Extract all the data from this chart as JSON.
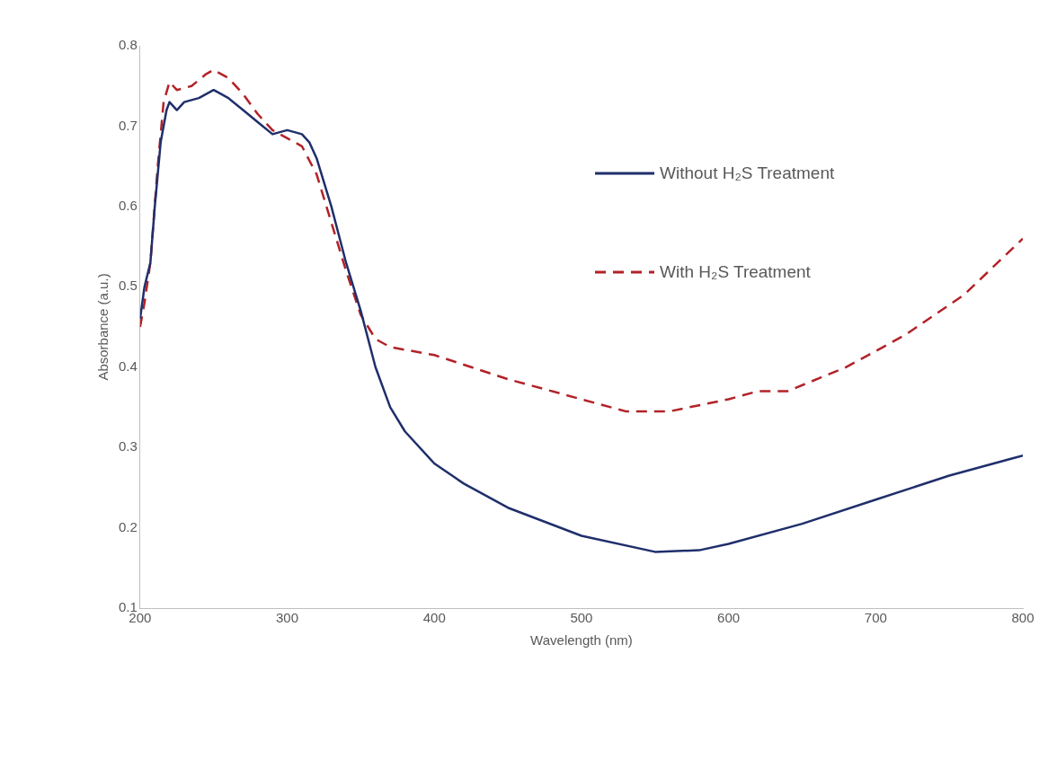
{
  "chart_data": {
    "type": "line",
    "xlabel": "Wavelength (nm)",
    "ylabel": "Absorbance (a.u.)",
    "xlim": [
      200,
      800
    ],
    "xticks": [
      200,
      300,
      400,
      500,
      600,
      700,
      800
    ],
    "ylim": [
      0.1,
      0.8
    ],
    "yticks": [
      0.1,
      0.2,
      0.3,
      0.4,
      0.5,
      0.6,
      0.7,
      0.8
    ],
    "grid": false,
    "legend": "top right",
    "marker": "none",
    "series": [
      {
        "name": "Without H₂S Treatment",
        "color": "#1f2f6b",
        "line_style": "solid",
        "x": [
          200,
          203,
          207,
          210,
          214,
          218,
          220,
          225,
          230,
          240,
          250,
          260,
          270,
          280,
          290,
          300,
          310,
          315,
          320,
          330,
          340,
          350,
          360,
          370,
          380,
          400,
          420,
          450,
          500,
          550,
          580,
          600,
          650,
          700,
          750,
          800
        ],
        "values": [
          0.46,
          0.5,
          0.53,
          0.6,
          0.68,
          0.72,
          0.73,
          0.72,
          0.73,
          0.735,
          0.745,
          0.735,
          0.72,
          0.705,
          0.69,
          0.695,
          0.69,
          0.68,
          0.66,
          0.6,
          0.53,
          0.47,
          0.4,
          0.35,
          0.32,
          0.28,
          0.255,
          0.225,
          0.19,
          0.17,
          0.172,
          0.18,
          0.205,
          0.235,
          0.265,
          0.29
        ]
      },
      {
        "name": "With H₂S Treatment",
        "color": "#b22228",
        "line_style": "dashed",
        "x": [
          200,
          203,
          207,
          212,
          216,
          220,
          225,
          235,
          245,
          250,
          260,
          270,
          280,
          290,
          300,
          310,
          320,
          330,
          340,
          350,
          360,
          370,
          400,
          450,
          500,
          530,
          560,
          600,
          620,
          640,
          680,
          720,
          760,
          800
        ],
        "values": [
          0.45,
          0.48,
          0.53,
          0.65,
          0.73,
          0.755,
          0.745,
          0.75,
          0.765,
          0.77,
          0.76,
          0.74,
          0.715,
          0.695,
          0.685,
          0.675,
          0.64,
          0.58,
          0.52,
          0.465,
          0.435,
          0.425,
          0.415,
          0.385,
          0.36,
          0.345,
          0.345,
          0.36,
          0.37,
          0.37,
          0.4,
          0.44,
          0.49,
          0.56
        ]
      }
    ]
  }
}
